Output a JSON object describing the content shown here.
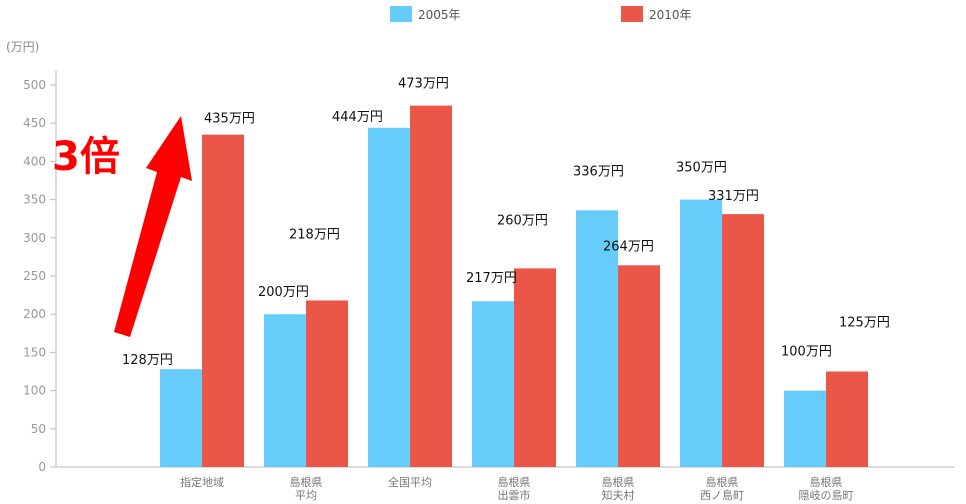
{
  "chart_data": {
    "type": "bar",
    "unit_label": "(万円)",
    "categories": [
      [
        "指定地域"
      ],
      [
        "島根県",
        "平均"
      ],
      [
        "全国平均"
      ],
      [
        "島根県",
        "出雲市"
      ],
      [
        "島根県",
        "知夫村"
      ],
      [
        "島根県",
        "西ノ島町"
      ],
      [
        "島根県",
        "隠岐の島町"
      ]
    ],
    "series": [
      {
        "name": "2005年",
        "color": "#66ccfa",
        "values": [
          128,
          200,
          444,
          217,
          336,
          350,
          100
        ],
        "labels": [
          "128万円",
          "200万円",
          "444万円",
          "217万円",
          "336万円",
          "350万円",
          "100万円"
        ]
      },
      {
        "name": "2010年",
        "color": "#ea5648",
        "values": [
          435,
          218,
          473,
          260,
          264,
          331,
          125
        ],
        "labels": [
          "435万円",
          "218万円",
          "473万円",
          "260万円",
          "264万円",
          "331万円",
          "125万円"
        ]
      }
    ],
    "ylim": [
      0,
      500
    ],
    "yticks": [
      0,
      50,
      100,
      150,
      200,
      250,
      300,
      350,
      400,
      450,
      500
    ],
    "grid": false,
    "legend_position": "top-center",
    "annotation": {
      "text": "3倍",
      "color": "#ff0000",
      "from_value": 128,
      "to_value": 435
    }
  }
}
